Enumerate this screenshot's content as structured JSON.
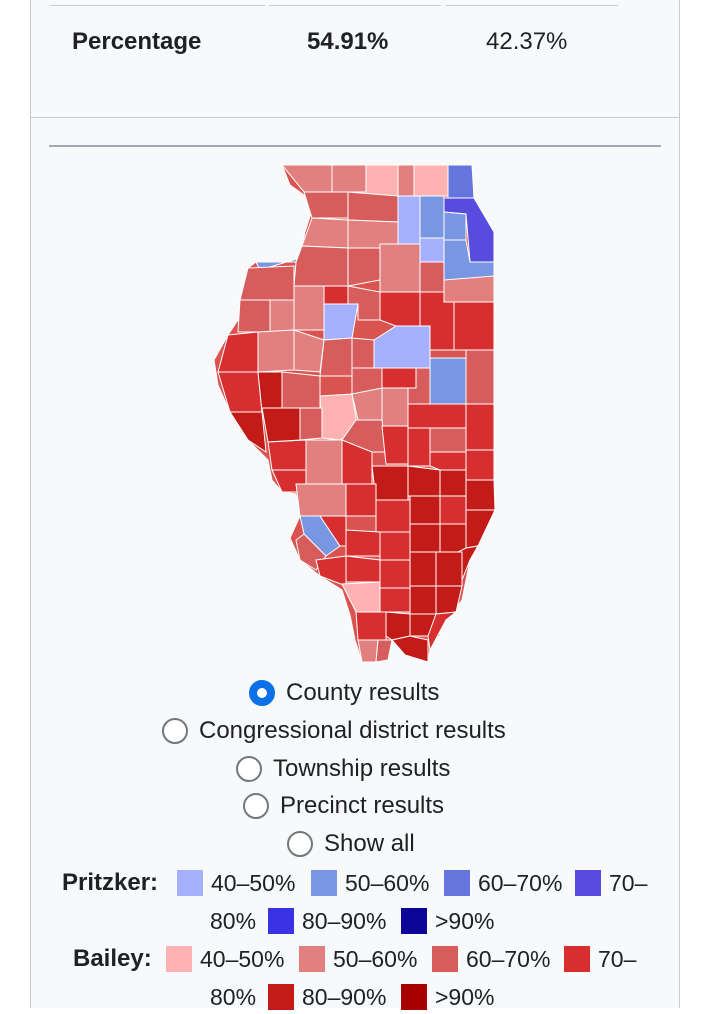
{
  "results_row": {
    "label": "Percentage",
    "candidate_a_pct": "54.91%",
    "candidate_b_pct": "42.37%"
  },
  "map_options": [
    {
      "label": "County results",
      "selected": true
    },
    {
      "label": "Congressional district results",
      "selected": false
    },
    {
      "label": "Township results",
      "selected": false
    },
    {
      "label": "Precinct results",
      "selected": false
    },
    {
      "label": "Show all",
      "selected": false
    }
  ],
  "legend": {
    "pritzker": {
      "title": "Pritzker:",
      "items": [
        {
          "label": "40–50%",
          "color": "#a5b0ff"
        },
        {
          "label": "50–60%",
          "color": "#7996e2"
        },
        {
          "label": "60–70%",
          "color": "#6674de"
        },
        {
          "label": "70–",
          "color": "#584cde"
        },
        {
          "label": "80%",
          "color": ""
        },
        {
          "label": "80–90%",
          "color": "#3933e5"
        },
        {
          "label": ">90%",
          "color": "#0d0596"
        }
      ]
    },
    "bailey": {
      "title": "Bailey:",
      "items": [
        {
          "label": "40–50%",
          "color": "#ffb2b2"
        },
        {
          "label": "50–60%",
          "color": "#e27f7f"
        },
        {
          "label": "60–70%",
          "color": "#d75d5d"
        },
        {
          "label": "70–",
          "color": "#d72f30"
        },
        {
          "label": "80%",
          "color": ""
        },
        {
          "label": "80–90%",
          "color": "#c21b18"
        },
        {
          "label": ">90%",
          "color": "#a80000"
        }
      ]
    }
  },
  "map": {
    "label": "Illinois county results map",
    "state_outline_color": "#ffffff"
  }
}
